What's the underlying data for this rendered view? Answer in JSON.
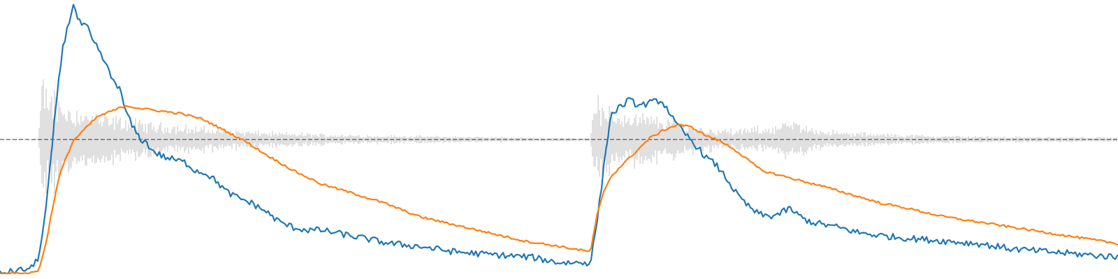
{
  "chart_data": {
    "type": "line",
    "title": "",
    "xlabel": "",
    "ylabel": "",
    "grid": false,
    "legend": "none",
    "xlim": [
      0,
      1600
    ],
    "envelope_ylim": [
      0,
      1.0
    ],
    "waveform_ylim": [
      -1,
      1
    ],
    "waveform": {
      "color": "#c0c0c0",
      "x": [
        0,
        55,
        60,
        75,
        95,
        120,
        150,
        180,
        220,
        280,
        330,
        380,
        430,
        500,
        600,
        700,
        800,
        845,
        850,
        860,
        880,
        910,
        940,
        970,
        1000,
        1050,
        1100,
        1130,
        1160,
        1200,
        1300,
        1400,
        1500,
        1600
      ],
      "amplitude": [
        0.004,
        0.006,
        0.52,
        0.47,
        0.33,
        0.27,
        0.22,
        0.19,
        0.15,
        0.12,
        0.09,
        0.07,
        0.06,
        0.045,
        0.035,
        0.025,
        0.015,
        0.015,
        0.46,
        0.31,
        0.27,
        0.24,
        0.21,
        0.17,
        0.12,
        0.09,
        0.12,
        0.17,
        0.12,
        0.07,
        0.045,
        0.03,
        0.025,
        0.02
      ]
    },
    "series": [
      {
        "color": "#1f77b4",
        "x": [
          0,
          25,
          45,
          55,
          62,
          70,
          80,
          90,
          100,
          105,
          112,
          118,
          125,
          132,
          140,
          150,
          160,
          170,
          180,
          190,
          200,
          210,
          220,
          235,
          250,
          265,
          280,
          295,
          310,
          325,
          340,
          360,
          380,
          400,
          420,
          440,
          460,
          480,
          500,
          520,
          540,
          560,
          600,
          650,
          700,
          760,
          800,
          820,
          845,
          852,
          860,
          868,
          875,
          885,
          900,
          915,
          930,
          945,
          955,
          965,
          975,
          990,
          1000,
          1010,
          1025,
          1040,
          1055,
          1070,
          1085,
          1100,
          1115,
          1130,
          1145,
          1160,
          1180,
          1200,
          1230,
          1260,
          1300,
          1350,
          1400,
          1450,
          1500,
          1550,
          1600
        ],
        "y": [
          0.0,
          0.01,
          0.02,
          0.06,
          0.16,
          0.34,
          0.62,
          0.84,
          0.94,
          1.0,
          0.93,
          0.92,
          0.91,
          0.86,
          0.83,
          0.78,
          0.72,
          0.69,
          0.6,
          0.54,
          0.5,
          0.48,
          0.45,
          0.43,
          0.42,
          0.41,
          0.38,
          0.37,
          0.34,
          0.3,
          0.28,
          0.26,
          0.23,
          0.19,
          0.17,
          0.16,
          0.16,
          0.15,
          0.14,
          0.13,
          0.12,
          0.11,
          0.1,
          0.08,
          0.07,
          0.06,
          0.04,
          0.04,
          0.04,
          0.15,
          0.3,
          0.48,
          0.59,
          0.61,
          0.64,
          0.62,
          0.63,
          0.64,
          0.61,
          0.56,
          0.53,
          0.49,
          0.46,
          0.43,
          0.4,
          0.35,
          0.29,
          0.25,
          0.22,
          0.21,
          0.22,
          0.24,
          0.21,
          0.19,
          0.18,
          0.17,
          0.15,
          0.14,
          0.13,
          0.12,
          0.11,
          0.09,
          0.08,
          0.07,
          0.06
        ]
      },
      {
        "color": "#ff7f0e",
        "x": [
          0,
          40,
          55,
          65,
          75,
          85,
          95,
          105,
          120,
          140,
          160,
          180,
          200,
          230,
          260,
          290,
          320,
          350,
          380,
          420,
          460,
          500,
          550,
          600,
          650,
          700,
          750,
          800,
          845,
          855,
          865,
          875,
          890,
          910,
          930,
          950,
          970,
          990,
          1010,
          1030,
          1050,
          1070,
          1090,
          1120,
          1150,
          1180,
          1220,
          1260,
          1300,
          1350,
          1400,
          1450,
          1500,
          1550,
          1600
        ],
        "y": [
          0.0,
          0.0,
          0.01,
          0.1,
          0.24,
          0.36,
          0.43,
          0.49,
          0.53,
          0.58,
          0.6,
          0.62,
          0.61,
          0.6,
          0.59,
          0.57,
          0.53,
          0.49,
          0.44,
          0.38,
          0.33,
          0.3,
          0.26,
          0.21,
          0.18,
          0.15,
          0.12,
          0.1,
          0.08,
          0.22,
          0.31,
          0.36,
          0.4,
          0.45,
          0.5,
          0.53,
          0.55,
          0.54,
          0.51,
          0.49,
          0.46,
          0.42,
          0.38,
          0.36,
          0.34,
          0.32,
          0.29,
          0.26,
          0.24,
          0.21,
          0.19,
          0.17,
          0.15,
          0.13,
          0.11
        ]
      }
    ]
  }
}
